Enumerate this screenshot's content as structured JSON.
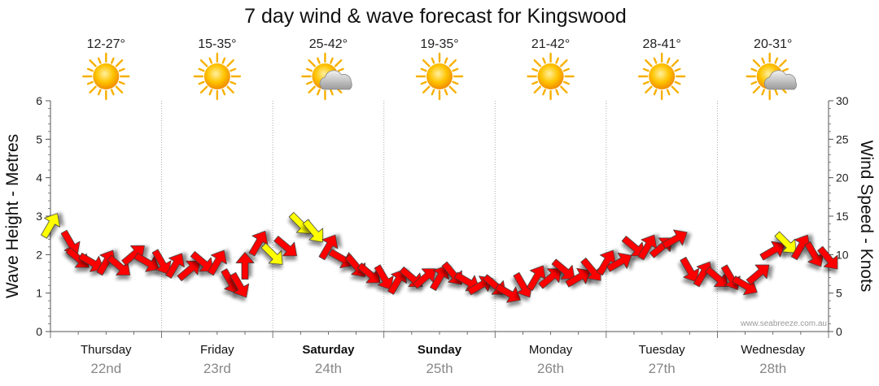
{
  "chart_data": {
    "type": "line",
    "title": "7 day wind & wave forecast for Kingswood",
    "ylabel_left": "Wave Height - Metres",
    "ylabel_right": "Wind Speed - Knots",
    "ylim_left": [
      0,
      6
    ],
    "ylim_right": [
      0,
      30
    ],
    "yticks_left": [
      "0",
      "1",
      "2",
      "3",
      "4",
      "5",
      "6"
    ],
    "yticks_right": [
      "0",
      "5",
      "10",
      "15",
      "20",
      "25",
      "30"
    ],
    "grid": true,
    "credit": "www.seabreeze.com.au",
    "days": [
      {
        "name": "Thursday",
        "date": "22nd",
        "bold": false,
        "temp": "12-27°",
        "icon": "sun-icon"
      },
      {
        "name": "Friday",
        "date": "23rd",
        "bold": false,
        "temp": "15-35°",
        "icon": "sun-icon"
      },
      {
        "name": "Saturday",
        "date": "24th",
        "bold": true,
        "temp": "25-42°",
        "icon": "sun-cloud-icon"
      },
      {
        "name": "Sunday",
        "date": "25th",
        "bold": true,
        "temp": "19-35°",
        "icon": "sun-icon"
      },
      {
        "name": "Monday",
        "date": "26th",
        "bold": false,
        "temp": "21-42°",
        "icon": "sun-icon"
      },
      {
        "name": "Tuesday",
        "date": "27th",
        "bold": false,
        "temp": "28-41°",
        "icon": "sun-icon"
      },
      {
        "name": "Wednesday",
        "date": "28th",
        "bold": false,
        "temp": "20-31°",
        "icon": "sun-cloud-icon"
      }
    ],
    "series": [
      {
        "unit": "knots",
        "x_days": [
          0.0,
          0.18,
          0.25,
          0.37,
          0.5,
          0.62,
          0.75,
          0.87,
          1.0,
          1.12,
          1.25,
          1.37,
          1.5,
          1.62,
          1.7,
          1.75,
          1.87,
          2.0,
          2.12,
          2.25,
          2.37,
          2.5,
          2.62,
          2.75,
          2.87,
          3.0,
          3.12,
          3.25,
          3.37,
          3.5,
          3.62,
          3.75,
          3.87,
          4.0,
          4.12,
          4.25,
          4.37,
          4.5,
          4.62,
          4.75,
          4.87,
          5.0,
          5.12,
          5.25,
          5.37,
          5.5,
          5.62,
          5.75,
          5.87,
          6.0,
          6.12,
          6.25,
          6.37,
          6.5,
          6.62,
          6.75,
          6.87,
          7.0
        ],
        "values": [
          13.8,
          11.5,
          9.5,
          9.0,
          9.0,
          8.5,
          10.0,
          9.0,
          9.0,
          8.6,
          8.0,
          9.0,
          9.0,
          6.5,
          6.0,
          8.5,
          11.5,
          10.0,
          11.0,
          14.0,
          13.0,
          11.0,
          9.5,
          8.5,
          7.5,
          7.0,
          6.5,
          7.0,
          7.0,
          7.0,
          7.5,
          6.5,
          6.0,
          6.0,
          5.0,
          6.0,
          7.0,
          7.0,
          8.0,
          7.0,
          8.0,
          9.0,
          9.0,
          11.0,
          11.0,
          11.0,
          12.0,
          8.0,
          7.5,
          7.0,
          7.0,
          6.0,
          7.5,
          10.5,
          11.5,
          11.0,
          10.0,
          9.5
        ],
        "colors": [
          "yellow",
          "red",
          "red",
          "red",
          "red",
          "red",
          "red",
          "red",
          "red",
          "red",
          "red",
          "red",
          "red",
          "red",
          "red",
          "red",
          "red",
          "yellow",
          "red",
          "yellow",
          "yellow",
          "red",
          "red",
          "red",
          "red",
          "red",
          "red",
          "red",
          "red",
          "red",
          "red",
          "red",
          "red",
          "red",
          "red",
          "red",
          "red",
          "red",
          "red",
          "red",
          "red",
          "red",
          "red",
          "red",
          "red",
          "red",
          "red",
          "red",
          "red",
          "red",
          "red",
          "red",
          "red",
          "red",
          "yellow",
          "red",
          "red",
          "red"
        ],
        "dir_deg": [
          300,
          60,
          40,
          30,
          300,
          40,
          320,
          30,
          60,
          300,
          320,
          40,
          300,
          60,
          60,
          270,
          300,
          45,
          40,
          45,
          50,
          300,
          30,
          50,
          40,
          60,
          300,
          40,
          320,
          300,
          50,
          30,
          330,
          40,
          30,
          60,
          300,
          320,
          40,
          330,
          50,
          300,
          330,
          40,
          300,
          320,
          330,
          60,
          300,
          40,
          60,
          30,
          320,
          330,
          45,
          300,
          60,
          50
        ]
      }
    ]
  },
  "palette": {
    "wind_red": "#ff0000",
    "wind_yellow": "#ffff00",
    "arrow_outline": "#333333",
    "axis": "#555555",
    "grid": "#aaaaaa"
  }
}
